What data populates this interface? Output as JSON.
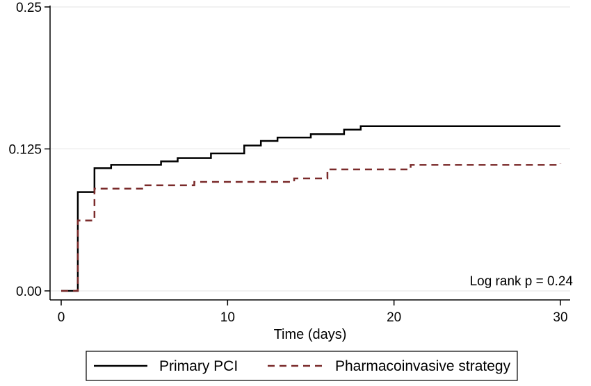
{
  "chart_data": {
    "type": "line",
    "step": true,
    "title": "",
    "xlabel": "Time (days)",
    "ylabel": "",
    "xlim": [
      0,
      30
    ],
    "ylim": [
      0,
      0.25
    ],
    "x_ticks": [
      0,
      10,
      20,
      30
    ],
    "x_tick_labels": [
      "0",
      "10",
      "20",
      "30"
    ],
    "y_ticks": [
      0,
      0.125,
      0.25
    ],
    "y_tick_labels": [
      "0.00",
      "0.125",
      "0.25"
    ],
    "grid": "horizontal",
    "legend": "bottom",
    "annotation": "Log rank p = 0.24",
    "series": [
      {
        "name": "Primary PCI",
        "color": "#000000",
        "style": "solid",
        "x": [
          0,
          1,
          2,
          3,
          6,
          7,
          9,
          11,
          12,
          13,
          15,
          17,
          18,
          30
        ],
        "y": [
          0,
          0.087,
          0.108,
          0.111,
          0.114,
          0.117,
          0.121,
          0.128,
          0.132,
          0.135,
          0.138,
          0.142,
          0.145,
          0.145
        ]
      },
      {
        "name": "Pharmacoinvasive strategy",
        "color": "#7a2a2a",
        "style": "dashed",
        "x": [
          0,
          1,
          2,
          5,
          8,
          14,
          16,
          21,
          30
        ],
        "y": [
          0,
          0.062,
          0.09,
          0.093,
          0.096,
          0.099,
          0.107,
          0.111,
          0.112
        ]
      }
    ]
  }
}
